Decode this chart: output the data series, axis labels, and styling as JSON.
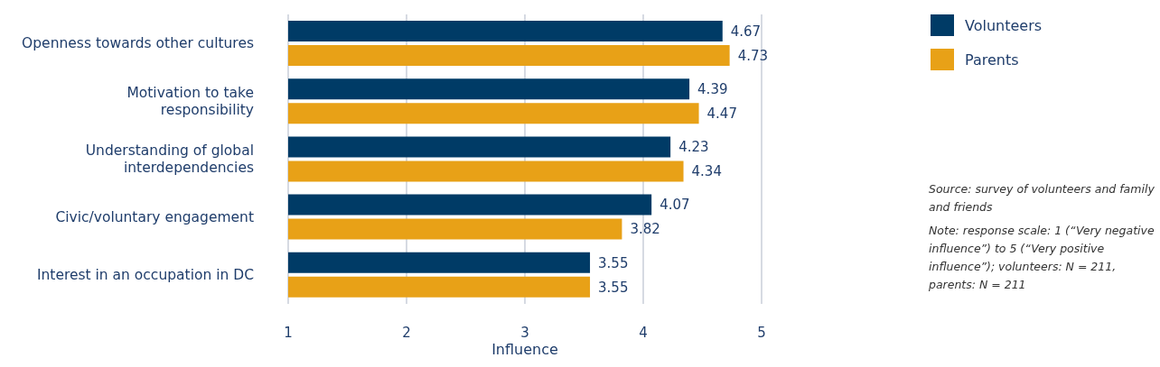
{
  "chart_data": {
    "type": "bar",
    "orientation": "horizontal",
    "xlabel": "Influence",
    "categories": [
      "Openness towards other cultures",
      "Motivation to take responsibility",
      "Understanding of global interdependencies",
      "Civic/voluntary engagement",
      "Interest in an occupation in DC"
    ],
    "series": [
      {
        "name": "Volunteers",
        "color": "#003b66",
        "values": [
          4.67,
          4.39,
          4.23,
          4.07,
          3.55
        ]
      },
      {
        "name": "Parents",
        "color": "#e8a117",
        "values": [
          4.73,
          4.47,
          4.34,
          3.82,
          3.55
        ]
      }
    ],
    "xlim": [
      1,
      5
    ],
    "xticks": [
      1,
      2,
      3,
      4,
      5
    ],
    "grid": "x",
    "legend": "top right",
    "data_labels": true,
    "annotations": [
      "Source: survey of volunteers and family and friends",
      "Note: response scale: 1 (“Very negative influence”) to 5 (“Very positive influence”); volunteers: N = 211, parents: N = 211"
    ]
  }
}
